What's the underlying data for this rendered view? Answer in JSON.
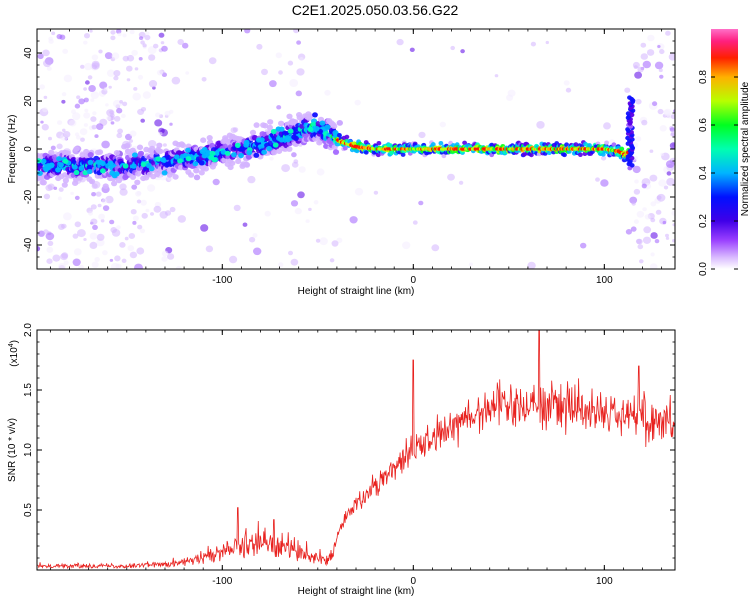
{
  "title": "C2E1.2025.050.03.56.G22",
  "chart_data": [
    {
      "type": "heatmap",
      "title": "C2E1.2025.050.03.56.G22",
      "xlabel": "Height of straight line (km)",
      "ylabel": "Frequency (Hz)",
      "xlim": [
        -197,
        137
      ],
      "ylim": [
        -50,
        50
      ],
      "xticks": [
        -100,
        0,
        100
      ],
      "yticks": [
        -40,
        -20,
        0,
        20,
        40
      ],
      "colorbar": {
        "label": "Normalized spectral amplitude",
        "range": [
          0.0,
          1.0
        ],
        "ticks": [
          "0.0",
          "0.2",
          "0.4",
          "0.6",
          "0.8"
        ],
        "tick_values": [
          0.0,
          0.2,
          0.4,
          0.6,
          0.8
        ]
      },
      "ridge": {
        "description_points_x": [
          -197,
          -170,
          -150,
          -130,
          -110,
          -90,
          -75,
          -60,
          -52,
          -47,
          -42,
          -38,
          -30,
          -20,
          -10,
          0,
          20,
          40,
          60,
          80,
          100,
          108,
          112,
          114,
          116
        ],
        "description_points_y": [
          -7,
          -7,
          -7,
          -5,
          -3,
          0,
          3,
          7,
          10,
          7,
          5,
          3,
          1,
          0,
          0,
          0,
          0,
          0,
          0,
          0,
          0,
          -1,
          -3,
          5,
          18
        ]
      },
      "colors": {
        "colormap": [
          "#f2e8ff",
          "#b07cff",
          "#5a00e0",
          "#0018ff",
          "#00c8ff",
          "#00ff60",
          "#c8ff00",
          "#ff9000",
          "#ff0000",
          "#ff60c0"
        ]
      }
    },
    {
      "type": "line",
      "xlabel": "Height of straight line (km)",
      "ylabel": "SNR (10 * v/v)",
      "y_multiplier": "(x10",
      "y_multiplier_exp": "4",
      "y_multiplier_close": ")",
      "xlim": [
        -197,
        137
      ],
      "ylim": [
        0,
        2.0
      ],
      "xticks": [
        -100,
        0,
        100
      ],
      "yticks": [
        0.5,
        1.0,
        1.5,
        2.0
      ],
      "ytick_labels": [
        "0.5",
        "1.0",
        "1.5",
        "2.0"
      ],
      "series": [
        {
          "color": "#e8211e",
          "envelope_x": [
            -197,
            -150,
            -130,
            -120,
            -110,
            -100,
            -90,
            -80,
            -70,
            -60,
            -50,
            -45,
            -40,
            -35,
            -30,
            -20,
            -10,
            -5,
            0,
            10,
            20,
            30,
            40,
            50,
            60,
            70,
            80,
            90,
            100,
            110,
            120,
            130,
            137
          ],
          "envelope_y": [
            0.04,
            0.04,
            0.06,
            0.08,
            0.12,
            0.18,
            0.22,
            0.26,
            0.24,
            0.18,
            0.12,
            0.1,
            0.28,
            0.45,
            0.55,
            0.72,
            0.85,
            0.95,
            1.0,
            1.1,
            1.22,
            1.3,
            1.36,
            1.38,
            1.4,
            1.38,
            1.37,
            1.35,
            1.33,
            1.3,
            1.28,
            1.25,
            1.25
          ],
          "spikes": [
            {
              "x": 0,
              "y": 1.75
            },
            {
              "x": 66,
              "y": 2.02
            },
            {
              "x": -92,
              "y": 0.52
            },
            {
              "x": -73,
              "y": 0.42
            },
            {
              "x": 118,
              "y": 1.7
            }
          ]
        }
      ]
    }
  ]
}
